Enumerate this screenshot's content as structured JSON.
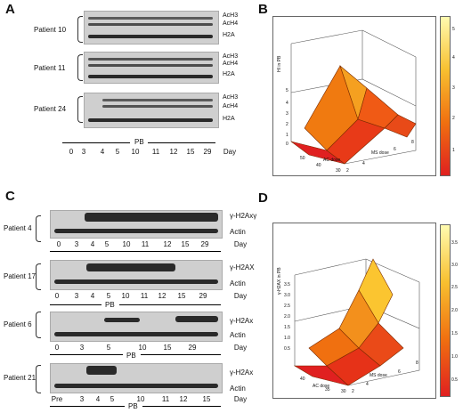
{
  "panel_a": {
    "letter": "A",
    "patients": [
      {
        "name": "Patient 10",
        "bands": [
          "AcH3",
          "AcH4",
          "H2A"
        ]
      },
      {
        "name": "Patient 11",
        "bands": [
          "AcH3",
          "AcH4",
          "H2A"
        ]
      },
      {
        "name": "Patient 24",
        "bands": [
          "AcH3",
          "AcH4",
          "H2A"
        ]
      }
    ],
    "pb_label": "PB",
    "days": [
      "0",
      "3",
      "4",
      "5",
      "10",
      "11",
      "12",
      "15",
      "29"
    ],
    "day_label": "Day"
  },
  "panel_b": {
    "letter": "B",
    "z_label": "HI in PB",
    "x_label": "AC dose",
    "y_label": "MS dose",
    "x_ticks": [
      "50",
      "40",
      "30"
    ],
    "y_ticks": [
      "2",
      "4",
      "6",
      "8"
    ],
    "z_ticks": [
      "0",
      "1",
      "2",
      "3",
      "4",
      "5"
    ],
    "cbar_ticks": [
      "5",
      "4",
      "3",
      "2",
      "1"
    ]
  },
  "panel_c": {
    "letter": "C",
    "blots": [
      {
        "patient": "Patient 4",
        "marker": "γ-H2Axγ",
        "actin": "Actin",
        "day_label": "Day",
        "days": [
          "0",
          "3",
          "4",
          "5",
          "10",
          "11",
          "12",
          "15",
          "29"
        ]
      },
      {
        "patient": "Patient 17",
        "marker": "γ-H2AX",
        "actin": "Actin",
        "day_label": "Day",
        "days": [
          "0",
          "3",
          "4",
          "5",
          "10",
          "11",
          "12",
          "15",
          "29"
        ]
      },
      {
        "patient": "Patient 6",
        "marker": "γ-H2Ax",
        "actin": "Actin",
        "day_label": "Day",
        "days": [
          "0",
          "3",
          "5",
          "10",
          "15",
          "29"
        ]
      },
      {
        "patient": "Patient 21",
        "marker": "γ-H2Ax",
        "actin": "Actin",
        "day_label": "Day",
        "days": [
          "Pre",
          "3",
          "4",
          "5",
          "10",
          "11",
          "12",
          "15"
        ]
      }
    ],
    "pb_label": "PB"
  },
  "panel_d": {
    "letter": "D",
    "z_label": "γ-H2AX in PB",
    "x_label": "AC dose",
    "y_label": "MS dose",
    "x_ticks": [
      "40",
      "35",
      "30"
    ],
    "y_ticks": [
      "2",
      "4",
      "6",
      "8"
    ],
    "z_ticks": [
      "0.5",
      "1.0",
      "1.5",
      "2.0",
      "2.5",
      "3.0",
      "3.5"
    ],
    "cbar_ticks": [
      "3.5",
      "3.0",
      "2.5",
      "2.0",
      "1.5",
      "1.0",
      "0.5"
    ]
  }
}
